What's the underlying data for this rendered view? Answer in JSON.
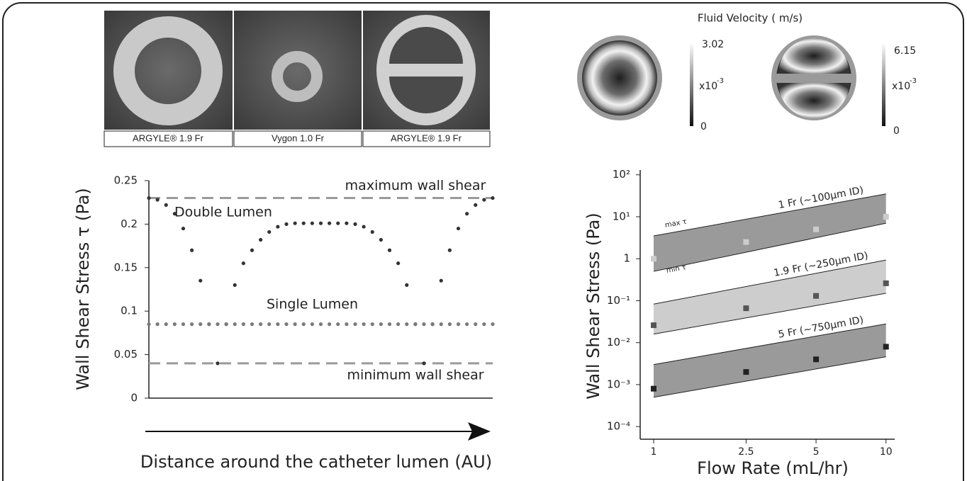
{
  "photos": {
    "captions": [
      "ARGYLE® 1.9 Fr",
      "Vygon 1.0 Fr",
      "ARGYLE® 1.9 Fr"
    ]
  },
  "velocity": {
    "title": "Fluid Velocity ( m/s)",
    "colorbars": [
      {
        "max": 3.02,
        "min": 0,
        "scale": "x10",
        "exponent": "-3"
      },
      {
        "max": 6.15,
        "min": 0,
        "scale": "x10",
        "exponent": "-3"
      }
    ]
  },
  "chart_data": [
    {
      "type": "line",
      "y_label": "Wall Shear Stress τ (Pa)",
      "x_label": "Distance around the catheter lumen (AU)",
      "x": [
        0,
        0.025,
        0.05,
        0.075,
        0.1,
        0.125,
        0.15,
        0.175,
        0.2,
        0.225,
        0.25,
        0.275,
        0.3,
        0.325,
        0.35,
        0.375,
        0.4,
        0.425,
        0.45,
        0.475,
        0.5,
        0.525,
        0.55,
        0.575,
        0.6,
        0.625,
        0.65,
        0.675,
        0.7,
        0.725,
        0.75,
        0.775,
        0.8,
        0.825,
        0.85,
        0.875,
        0.9,
        0.925,
        0.95,
        0.975,
        1
      ],
      "xlim": [
        0,
        1
      ],
      "ylim": [
        0,
        0.25
      ],
      "yticks": [
        0,
        0.05,
        0.1,
        0.15,
        0.2,
        0.25
      ],
      "series": [
        {
          "name": "Double Lumen",
          "color": "#333333",
          "values": [
            0.23,
            0.228,
            0.222,
            0.212,
            0.195,
            0.17,
            0.135,
            0.085,
            0.04,
            0.085,
            0.13,
            0.155,
            0.17,
            0.182,
            0.191,
            0.197,
            0.2,
            0.201,
            0.201,
            0.201,
            0.201,
            0.201,
            0.201,
            0.201,
            0.2,
            0.197,
            0.191,
            0.182,
            0.17,
            0.155,
            0.13,
            0.085,
            0.04,
            0.085,
            0.135,
            0.17,
            0.195,
            0.212,
            0.222,
            0.228,
            0.23
          ]
        },
        {
          "name": "Single Lumen",
          "color": "#7a7a7a",
          "values": [
            0.085,
            0.085,
            0.085,
            0.085,
            0.085,
            0.085,
            0.085,
            0.085,
            0.085,
            0.085,
            0.085,
            0.085,
            0.085,
            0.085,
            0.085,
            0.085,
            0.085,
            0.085,
            0.085,
            0.085,
            0.085,
            0.085,
            0.085,
            0.085,
            0.085,
            0.085,
            0.085,
            0.085,
            0.085,
            0.085,
            0.085,
            0.085,
            0.085,
            0.085,
            0.085,
            0.085,
            0.085,
            0.085,
            0.085,
            0.085,
            0.085
          ]
        }
      ],
      "reference_lines": [
        {
          "value": 0.23,
          "label": "maximum wall shear"
        },
        {
          "value": 0.04,
          "label": "minimum wall shear"
        }
      ]
    },
    {
      "type": "scatter",
      "y_label": "Wall Shear Stress (Pa)",
      "x_label": "Flow Rate (mL/hr)",
      "xlog": true,
      "ylog": true,
      "xlim": [
        0.875,
        10.9
      ],
      "ylim": [
        5e-05,
        130
      ],
      "xticks": [
        1,
        2.5,
        5,
        10
      ],
      "yticks": [
        {
          "value": 0.0001,
          "label": "10⁻⁴"
        },
        {
          "value": 0.001,
          "label": "10⁻³"
        },
        {
          "value": 0.01,
          "label": "10⁻²"
        },
        {
          "value": 0.1,
          "label": "10⁻¹"
        },
        1,
        {
          "value": 10,
          "label": "10¹"
        },
        {
          "value": 100,
          "label": "10²"
        }
      ],
      "annotations": [
        "max τ",
        "min τ"
      ],
      "series": [
        {
          "name": "1 Fr (~100μm ID)",
          "color": "#cccccc",
          "x": [
            1,
            2.5,
            5,
            10
          ],
          "values": [
            1,
            2.5,
            5,
            10
          ],
          "band": {
            "color": "#9a9a9a",
            "x": [
              1,
              10
            ],
            "lower": [
              0.5,
              7
            ],
            "upper": [
              3.5,
              35
            ]
          }
        },
        {
          "name": "1.9 Fr (~250μm ID)",
          "color": "#555555",
          "x": [
            1,
            2.5,
            5,
            10
          ],
          "values": [
            0.026,
            0.066,
            0.13,
            0.26
          ],
          "band": {
            "color": "#cdcdcd",
            "x": [
              1,
              10
            ],
            "lower": [
              0.016,
              0.15
            ],
            "upper": [
              0.083,
              0.93
            ]
          }
        },
        {
          "name": "5 Fr (~750μm ID)",
          "color": "#222222",
          "x": [
            1,
            2.5,
            5,
            10
          ],
          "values": [
            0.0008,
            0.002,
            0.004,
            0.008
          ],
          "band": {
            "color": "#9a9a9a",
            "x": [
              1,
              10
            ],
            "lower": [
              0.0005,
              0.0046
            ],
            "upper": [
              0.003,
              0.028
            ]
          }
        }
      ]
    }
  ]
}
